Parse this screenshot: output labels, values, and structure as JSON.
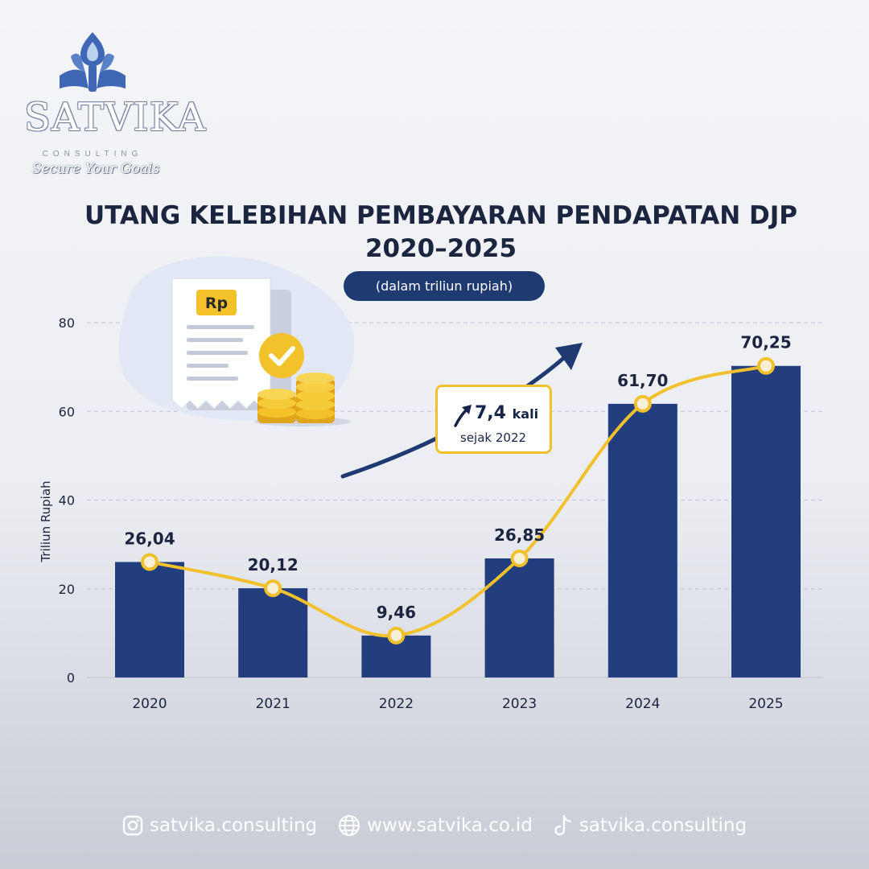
{
  "brand": {
    "name": "SATVIKA",
    "sub": "CONSULTING",
    "tagline": "Secure Your Goals"
  },
  "header": {
    "title_line1": "UTANG KELEBIHAN PEMBAYARAN PENDAPATAN DJP",
    "title_line2": "2020–2025",
    "unit_badge": "(dalam triliun rupiah)"
  },
  "illustration": {
    "currency_label": "Rp",
    "icons": [
      "receipt-icon",
      "check-badge-icon",
      "coin-stack-icon"
    ]
  },
  "callout": {
    "value": "7,4",
    "unit": "kali",
    "note": "sejak 2022",
    "icon": "trend-up-arrow-icon"
  },
  "chart_data": {
    "type": "bar",
    "categories": [
      "2020",
      "2021",
      "2022",
      "2023",
      "2024",
      "2025"
    ],
    "values": [
      26.04,
      20.12,
      9.46,
      26.85,
      61.7,
      70.25
    ],
    "labels": [
      "26,04",
      "20,12",
      "9,46",
      "26,85",
      "61,70",
      "70,25"
    ],
    "overlay": "line",
    "ylabel": "Triliun Rupiah",
    "ylim": [
      0,
      80
    ],
    "yticks": [
      0,
      20,
      40,
      60,
      80
    ],
    "grid": true,
    "colors": {
      "bar": "#223e7e",
      "line": "#f1c12d",
      "marker_fill": "#f7f0d6",
      "arrow": "#1f3a70"
    }
  },
  "footer": {
    "instagram": "satvika.consulting",
    "website": "www.satvika.co.id",
    "tiktok": "satvika.consulting",
    "icons": [
      "instagram-icon",
      "globe-icon",
      "tiktok-icon"
    ]
  }
}
